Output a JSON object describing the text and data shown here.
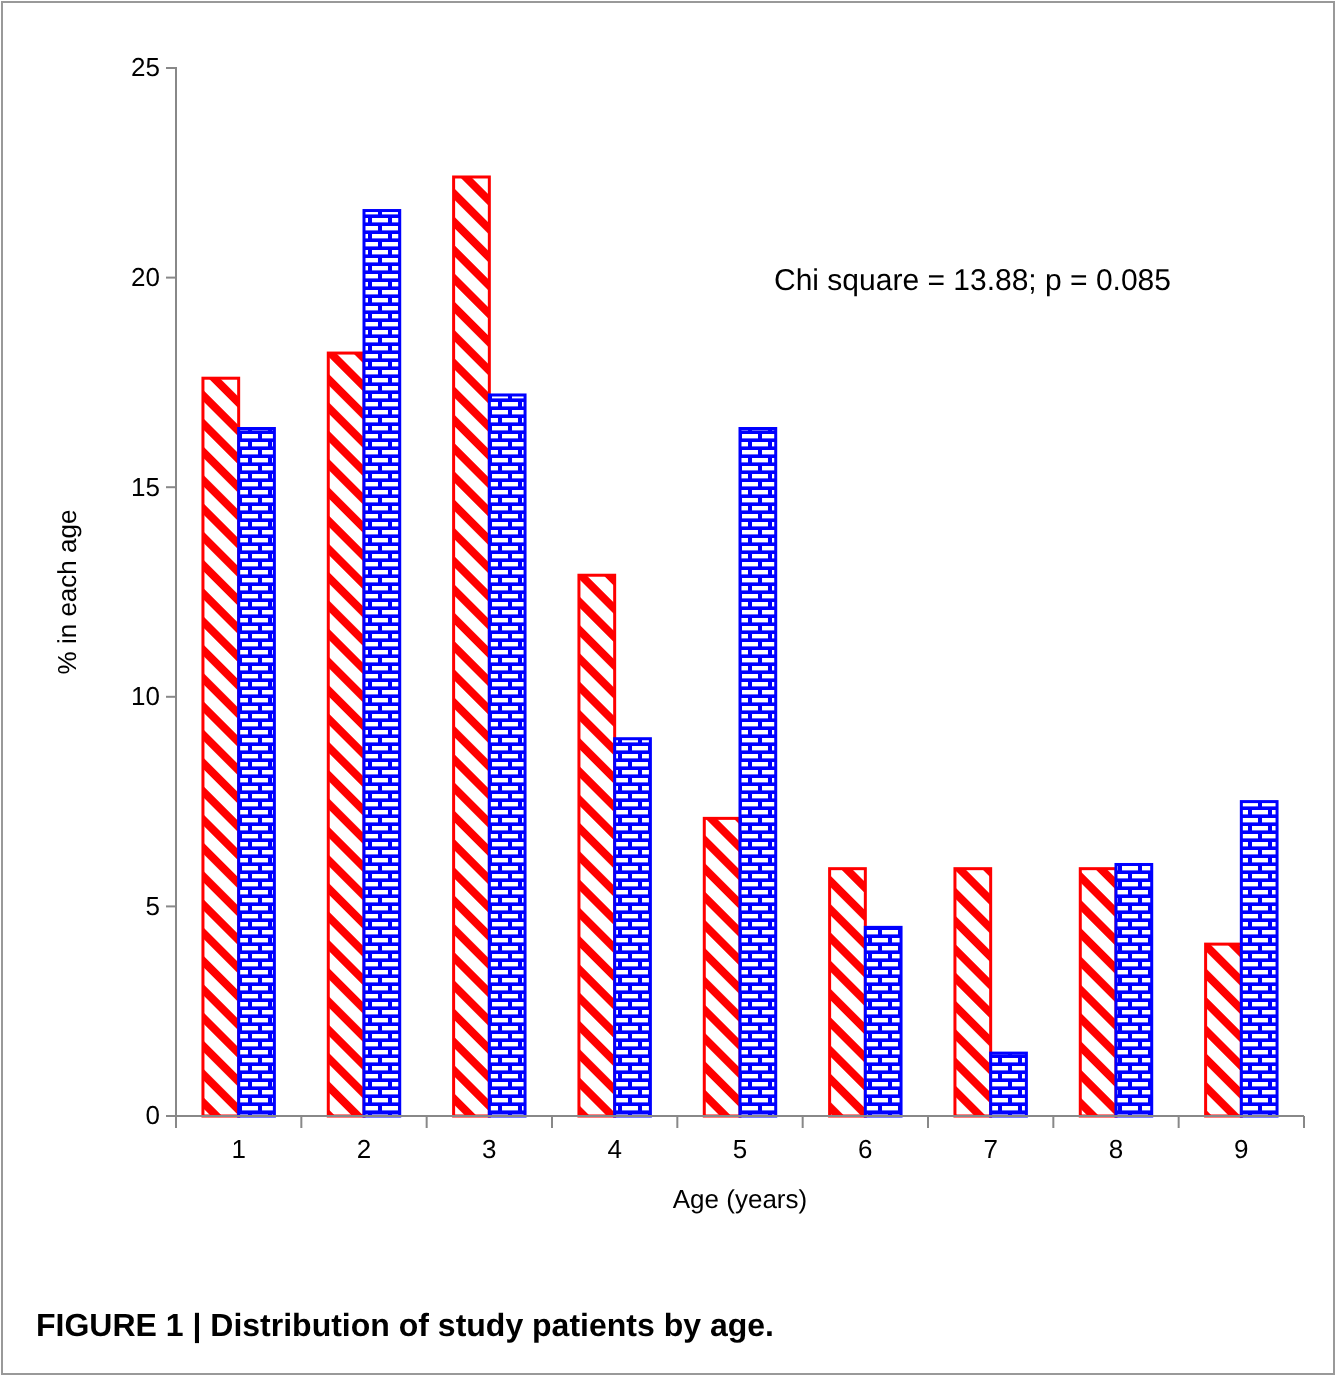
{
  "chart_data": {
    "type": "bar",
    "title": "FIGURE 1 | Distribution of study patients by age.",
    "xlabel": "Age (years)",
    "ylabel": "% in each age",
    "categories": [
      "1",
      "2",
      "3",
      "4",
      "5",
      "6",
      "7",
      "8",
      "9"
    ],
    "series": [
      {
        "color": "#ff0000",
        "values": [
          17.6,
          18.2,
          22.4,
          12.9,
          7.1,
          5.9,
          5.9,
          5.9,
          4.1
        ]
      },
      {
        "color": "#0000ff",
        "values": [
          16.4,
          21.6,
          17.2,
          9.0,
          16.4,
          4.5,
          1.5,
          6.0,
          7.5
        ]
      }
    ],
    "ylim": [
      0,
      25
    ],
    "yticks": [
      0,
      5,
      10,
      15,
      20,
      25
    ],
    "grid": false,
    "annotations": [
      "Chi square = 13.88; p = 0.085"
    ]
  }
}
